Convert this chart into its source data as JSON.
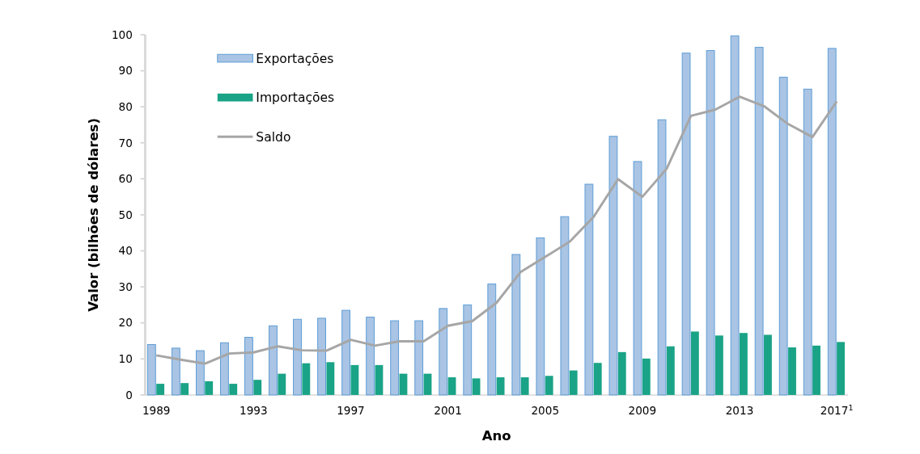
{
  "chart_data": {
    "type": "bar",
    "xlabel": "Ano",
    "ylabel": "Valor (bilhões de dólares)",
    "categories": [
      "1989",
      null,
      null,
      null,
      "1993",
      null,
      null,
      null,
      "1997",
      null,
      null,
      null,
      "2001",
      null,
      null,
      null,
      "2005",
      null,
      null,
      null,
      "2009",
      null,
      null,
      null,
      "2013",
      null,
      null,
      null,
      "2017$^{1}$"
    ],
    "series": [
      {
        "name": "Exportações",
        "color": "#a9c4e4",
        "values": [
          14,
          13,
          12.3,
          14.5,
          16,
          19.2,
          21,
          21.3,
          23.5,
          21.6,
          20.6,
          20.6,
          24,
          25,
          30.8,
          39,
          43.6,
          49.5,
          58.5,
          71.8,
          64.8,
          76.4,
          94.9,
          95.6,
          99.7,
          96.5,
          88.2,
          84.9,
          96.2
        ]
      },
      {
        "name": "Importações",
        "color": "#1aa386",
        "values": [
          3.1,
          3.3,
          3.8,
          3.1,
          4.2,
          5.9,
          8.8,
          9.1,
          8.3,
          8.3,
          5.9,
          5.9,
          4.9,
          4.6,
          4.9,
          4.9,
          5.3,
          6.8,
          8.9,
          11.9,
          10.1,
          13.5,
          17.6,
          16.5,
          17.2,
          16.7,
          13.2,
          13.7,
          14.7
        ]
      },
      {
        "name": "Saldo",
        "type": "line",
        "color": "#a6a6a6",
        "values": [
          11,
          9.8,
          8.7,
          11.5,
          11.8,
          13.5,
          12.4,
          12.3,
          15.3,
          13.7,
          14.9,
          14.9,
          19.2,
          20.5,
          25.6,
          34.2,
          38.3,
          42.5,
          49.5,
          59.9,
          55,
          62.8,
          77.5,
          79.2,
          82.8,
          80.2,
          75.2,
          71.6,
          81.5
        ]
      }
    ],
    "ylim": [
      0,
      100
    ],
    "yticks": [
      0,
      10,
      20,
      30,
      40,
      50,
      60,
      70,
      80,
      90,
      100
    ],
    "grid": false,
    "legend": "top left",
    "marker": "none"
  }
}
